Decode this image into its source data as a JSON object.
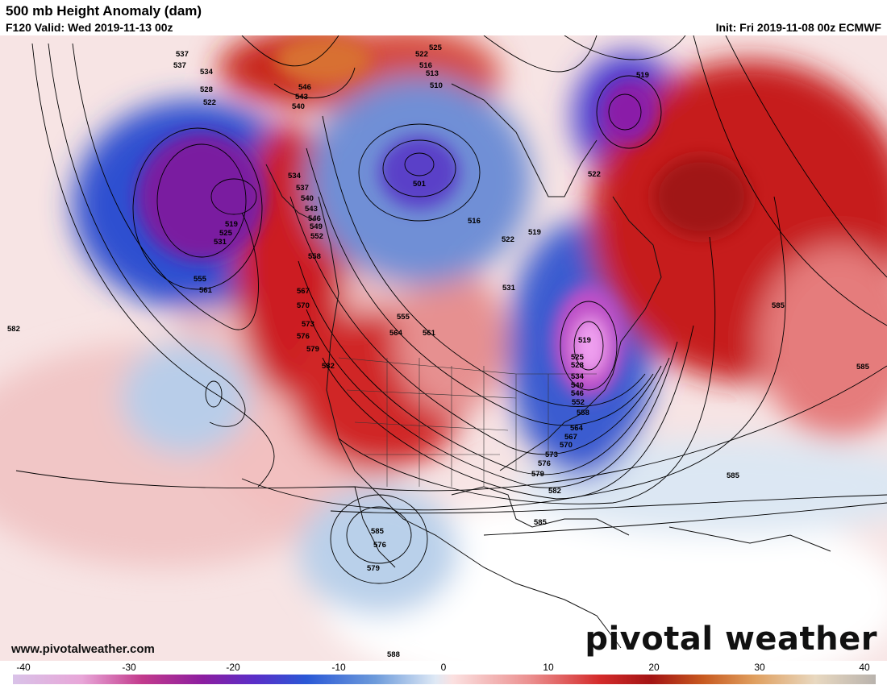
{
  "header": {
    "title": "500 mb Height Anomaly (dam)",
    "valid": "F120 Valid: Wed 2019-11-13 00z",
    "init": "Init: Fri 2019-11-08 00z ECMWF"
  },
  "footer": {
    "site": "www.pivotalweather.com",
    "brand": "pivotal weather"
  },
  "colors": {
    "strong_negative": "#7a1fa0",
    "negative": "#2c5fc8",
    "weak_negative": "#c6d8ee",
    "weak_positive": "#f4c4c4",
    "positive": "#c81e1e",
    "strong_positive": "#d2691e"
  },
  "colorbar": {
    "ticks": [
      "-40",
      "-30",
      "-20",
      "-10",
      "0",
      "10",
      "20",
      "30",
      "40"
    ]
  },
  "contour_labels": [
    "537",
    "537",
    "534",
    "528",
    "522",
    "546",
    "543",
    "540",
    "525",
    "522",
    "516",
    "513",
    "510",
    "519",
    "522",
    "534",
    "537",
    "540",
    "543",
    "546",
    "549",
    "552",
    "558",
    "519",
    "525",
    "531",
    "555",
    "561",
    "567",
    "570",
    "573",
    "576",
    "579",
    "582",
    "555",
    "564",
    "561",
    "516",
    "522",
    "519",
    "531",
    "501",
    "519",
    "525",
    "528",
    "534",
    "540",
    "546",
    "552",
    "558",
    "564",
    "567",
    "570",
    "573",
    "576",
    "579",
    "582",
    "585",
    "585",
    "585",
    "585",
    "585",
    "576",
    "579",
    "582",
    "588",
    "585"
  ]
}
